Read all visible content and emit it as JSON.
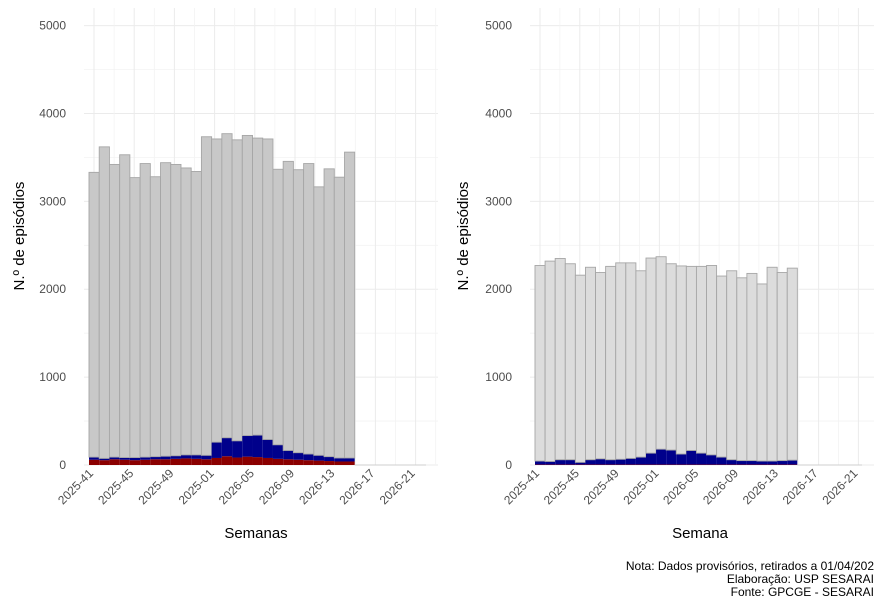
{
  "chart_data": [
    {
      "type": "bar",
      "stacked": true,
      "xlabel": "Semanas",
      "ylabel": "N.º de episódios",
      "ylim": [
        0,
        5200
      ],
      "yticks": [
        0,
        1000,
        2000,
        3000,
        4000,
        5000
      ],
      "grid": true,
      "x_tick_labels": [
        "2025-41",
        "2025-45",
        "2025-49",
        "2025-01",
        "2026-05",
        "2026-09",
        "2026-13",
        "2026-17",
        "2026-21"
      ],
      "categories": [
        "2025-41",
        "2025-42",
        "2025-43",
        "2025-44",
        "2025-45",
        "2025-46",
        "2025-47",
        "2025-48",
        "2025-49",
        "2025-50",
        "2025-51",
        "2025-52",
        "2025-01",
        "2026-02",
        "2026-03",
        "2026-04",
        "2026-05",
        "2026-06",
        "2026-07",
        "2026-08",
        "2026-09",
        "2026-10",
        "2026-11",
        "2026-12",
        "2026-13",
        "2026-14"
      ],
      "series": [
        {
          "color": "#8b0000",
          "values": [
            60,
            55,
            65,
            60,
            55,
            60,
            65,
            65,
            70,
            75,
            70,
            65,
            80,
            100,
            85,
            95,
            90,
            80,
            70,
            65,
            60,
            55,
            50,
            45,
            40,
            40
          ]
        },
        {
          "color": "#00008b",
          "values": [
            30,
            20,
            25,
            25,
            30,
            30,
            30,
            35,
            35,
            40,
            45,
            45,
            180,
            210,
            190,
            240,
            250,
            210,
            160,
            100,
            80,
            70,
            60,
            50,
            40,
            40
          ]
        },
        {
          "color": "#c8c8c8",
          "values": [
            3240,
            3545,
            3330,
            3445,
            3185,
            3340,
            3185,
            3340,
            3315,
            3265,
            3225,
            3625,
            3450,
            3460,
            3425,
            3415,
            3380,
            3420,
            3135,
            3290,
            3220,
            3305,
            3055,
            3275,
            3195,
            3480
          ]
        }
      ]
    },
    {
      "type": "bar",
      "stacked": true,
      "xlabel": "Semana",
      "ylabel": "N.º de episódios",
      "ylim": [
        0,
        5200
      ],
      "yticks": [
        0,
        1000,
        2000,
        3000,
        4000,
        5000
      ],
      "grid": true,
      "x_tick_labels": [
        "2025-41",
        "2025-45",
        "2025-49",
        "2025-01",
        "2026-05",
        "2026-09",
        "2026-13",
        "2026-17",
        "2026-21"
      ],
      "categories": [
        "2025-41",
        "2025-42",
        "2025-43",
        "2025-44",
        "2025-45",
        "2025-46",
        "2025-47",
        "2025-48",
        "2025-49",
        "2025-50",
        "2025-51",
        "2025-52",
        "2025-01",
        "2026-02",
        "2026-03",
        "2026-04",
        "2026-05",
        "2026-06",
        "2026-07",
        "2026-08",
        "2026-09",
        "2026-10",
        "2026-11",
        "2026-12",
        "2026-13",
        "2026-14"
      ],
      "series": [
        {
          "color": "#8b0000",
          "values": [
            5,
            5,
            5,
            5,
            5,
            5,
            5,
            5,
            5,
            5,
            5,
            5,
            5,
            5,
            5,
            5,
            5,
            5,
            5,
            5,
            5,
            5,
            5,
            5,
            5,
            5
          ]
        },
        {
          "color": "#00008b",
          "values": [
            40,
            35,
            55,
            55,
            25,
            55,
            65,
            55,
            60,
            70,
            85,
            130,
            175,
            165,
            120,
            160,
            130,
            110,
            85,
            55,
            45,
            45,
            40,
            40,
            45,
            50
          ]
        },
        {
          "color": "#dcdcdc",
          "values": [
            2225,
            2280,
            2290,
            2230,
            2130,
            2190,
            2120,
            2200,
            2235,
            2225,
            2120,
            2220,
            2190,
            2120,
            2140,
            2095,
            2125,
            2155,
            2060,
            2150,
            2080,
            2130,
            2015,
            2205,
            2140,
            2185
          ]
        }
      ]
    }
  ],
  "note": {
    "line1": "Nota: Dados provisórios, retirados a 01/04/202",
    "line2": "Elaboração: USP SESARAI",
    "line3": "Fonte: GPCGE - SESARAI"
  }
}
